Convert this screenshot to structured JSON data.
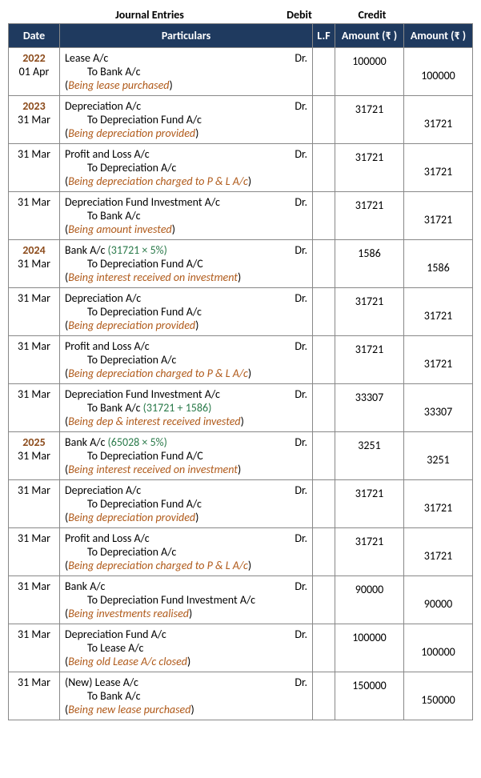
{
  "title_row": {
    "journal": "Journal Entries",
    "debit": "Debit",
    "credit": "Credit"
  },
  "headers": {
    "date": "Date",
    "particulars": "Particulars",
    "lf": "L.F",
    "amount_dr": "Amount (₹ )",
    "amount_cr": "Amount (₹ )"
  },
  "entries": [
    {
      "year": "2022",
      "date": "01 Apr",
      "l1": "Lease A/c",
      "l2": "To Bank A/c",
      "narr": "Being lease purchased",
      "dr": "100000",
      "cr": "100000"
    },
    {
      "year": "2023",
      "date": "31 Mar",
      "l1": "Depreciation A/c",
      "l2": "To Depreciation Fund  A/c",
      "narr": "Being depreciation provided",
      "dr": "31721",
      "cr": "31721"
    },
    {
      "year": "",
      "date": "31 Mar",
      "l1": "Profit and Loss A/c",
      "l2": "To Depreciation A/c",
      "narr": "Being depreciation charged to P & L A/c",
      "dr": "31721",
      "cr": "31721"
    },
    {
      "year": "",
      "date": "31 Mar",
      "l1": "Depreciation Fund Investment A/c",
      "l2": "To Bank A/c",
      "narr": "Being amount invested",
      "dr": "31721",
      "cr": "31721"
    },
    {
      "year": "2024",
      "date": "31 Mar",
      "l1": "Bank A/c ",
      "l1calc": "(31721 × 5%)",
      "l2": "To Depreciation Fund A/C",
      "narr": "Being interest received on investment",
      "dr": "1586",
      "cr": "1586"
    },
    {
      "year": "",
      "date": "31 Mar",
      "l1": "Depreciation A/c",
      "l2": "To Depreciation Fund  A/c",
      "narr": "Being depreciation provided",
      "dr": "31721",
      "cr": "31721"
    },
    {
      "year": "",
      "date": "31 Mar",
      "l1": "Profit and Loss A/c",
      "l2": "To Depreciation A/c",
      "narr": "Being depreciation charged to P & L A/c",
      "dr": "31721",
      "cr": "31721"
    },
    {
      "year": "",
      "date": "31 Mar",
      "l1": "Depreciation Fund Investment A/c",
      "l2": "To Bank A/c ",
      "l2calc": "(31721 + 1586)",
      "narr": "Being dep & interest received invested",
      "dr": "33307",
      "cr": "33307"
    },
    {
      "year": "2025",
      "date": "31 Mar",
      "l1": "Bank A/c ",
      "l1calc": "(65028 × 5%)",
      "l2": "To Depreciation Fund A/C",
      "narr": "Being interest received on investment",
      "dr": "3251",
      "cr": "3251"
    },
    {
      "year": "",
      "date": "31 Mar",
      "l1": "Depreciation A/c",
      "l2": "To Depreciation Fund  A/c",
      "narr": "Being depreciation provided",
      "dr": "31721",
      "cr": "31721"
    },
    {
      "year": "",
      "date": "31 Mar",
      "l1": "Profit and Loss A/c",
      "l2": "To Depreciation A/c",
      "narr": "Being depreciation charged to P & L A/c",
      "dr": "31721",
      "cr": "31721"
    },
    {
      "year": "",
      "date": "31 Mar",
      "l1": "Bank A/c",
      "l2": "To Depreciation Fund Investment A/c",
      "narr": "Being investments realised",
      "dr": "90000",
      "cr": "90000"
    },
    {
      "year": "",
      "date": "31 Mar",
      "l1": "Depreciation Fund  A/c",
      "l2": "To Lease A/c",
      "narr": "Being old Lease A/c closed",
      "dr": "100000",
      "cr": "100000"
    },
    {
      "year": "",
      "date": "31 Mar",
      "l1": "(New) Lease A/c",
      "l2": "To Bank A/c",
      "narr": "Being new lease purchased",
      "dr": "150000",
      "cr": "150000"
    }
  ],
  "dr_mark": "Dr."
}
